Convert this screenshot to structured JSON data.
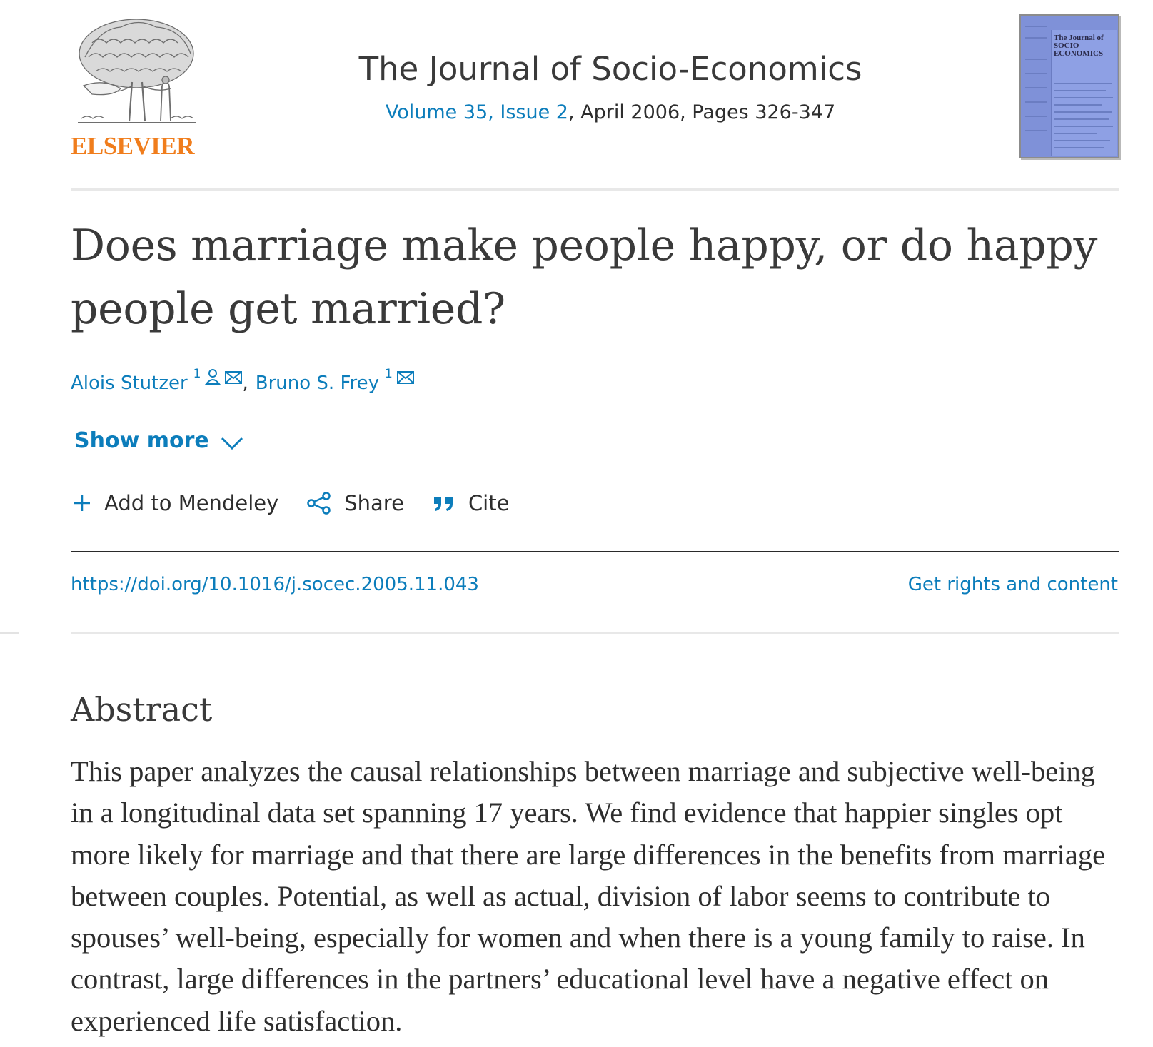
{
  "header": {
    "publisher": "ELSEVIER",
    "journal_title": "The Journal of Socio-Economics",
    "volume_issue": "Volume 35, Issue 2",
    "issue_separator": ",",
    "date_pages": " April 2006, Pages 326-347",
    "cover_title": "The Journal of SOCIO-ECONOMICS"
  },
  "article": {
    "title": "Does marriage make people happy, or do happy people get married?",
    "authors": [
      {
        "name": "Alois Stutzer",
        "affiliation": "1"
      },
      {
        "name": "Bruno S. Frey",
        "affiliation": "1"
      }
    ],
    "author_separator": ",",
    "show_more_label": "Show more",
    "actions": {
      "mendeley": "Add to Mendeley",
      "share": "Share",
      "cite": "Cite"
    },
    "doi": "https://doi.org/10.1016/j.socec.2005.11.043",
    "rights_label": "Get rights and content"
  },
  "abstract": {
    "heading": "Abstract",
    "body": "This paper analyzes the causal relationships between marriage and subjective well-being in a longitudinal data set spanning 17 years. We find evidence that happier singles opt more likely for marriage and that there are large differences in the benefits from marriage between couples. Potential, as well as actual, division of labor seems to contribute to spouses’ well-being, especially for women and when there is a young family to raise. In contrast, large differences in the partners’ educational level have a negative effect on experienced life satisfaction."
  },
  "colors": {
    "link": "#0c7dbb",
    "publisher_orange": "#f07d1c",
    "cover_blue": "#7f91d8"
  }
}
